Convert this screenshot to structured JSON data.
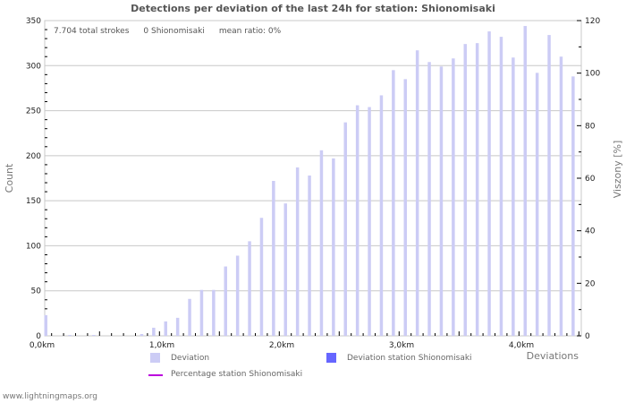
{
  "title": "Detections per deviation of the last 24h for station: Shionomisaki",
  "stats": {
    "total_strokes": "7.704 total strokes",
    "station_count": "0 Shionomisaki",
    "mean_ratio": "mean ratio: 0%"
  },
  "axes": {
    "y_left_title": "Count",
    "y_right_title": "Viszony [%]",
    "x_title": "Deviations",
    "y_left_ticks": [
      "0",
      "50",
      "100",
      "150",
      "200",
      "250",
      "300",
      "350"
    ],
    "y_right_ticks": [
      "0",
      "20",
      "40",
      "60",
      "80",
      "100",
      "120"
    ],
    "x_ticks": [
      "0,0km",
      "1,0km",
      "2,0km",
      "3,0km",
      "4,0km"
    ]
  },
  "legend": {
    "deviation": "Deviation",
    "deviation_station": "Deviation station Shionomisaki",
    "percentage_station": "Percentage station Shionomisaki"
  },
  "colors": {
    "deviation": "#ccccf5",
    "deviation_station": "#6666ff",
    "percentage_line": "#bb00dd",
    "grid": "#c8c8c8"
  },
  "watermark": "www.lightningmaps.org",
  "chart_data": {
    "type": "bar",
    "title": "Detections per deviation of the last 24h for station: Shionomisaki",
    "xlabel": "Deviations",
    "ylabel": "Count",
    "ylabel_right": "Viszony [%]",
    "ylim": [
      0,
      350
    ],
    "ylim_right": [
      0,
      120
    ],
    "grid": true,
    "legend_position": "bottom",
    "categories": [
      "0.0",
      "0.1",
      "0.2",
      "0.3",
      "0.4",
      "0.5",
      "0.6",
      "0.7",
      "0.8",
      "0.9",
      "1.0",
      "1.1",
      "1.2",
      "1.3",
      "1.4",
      "1.5",
      "1.6",
      "1.7",
      "1.8",
      "1.9",
      "2.0",
      "2.1",
      "2.2",
      "2.3",
      "2.4",
      "2.5",
      "2.6",
      "2.7",
      "2.8",
      "2.9",
      "3.0",
      "3.1",
      "3.2",
      "3.3",
      "3.4",
      "3.5",
      "3.6",
      "3.7",
      "3.8",
      "3.9",
      "4.0",
      "4.1",
      "4.2",
      "4.3",
      "4.4"
    ],
    "series": [
      {
        "name": "Deviation",
        "values": [
          23,
          0,
          1,
          0,
          1,
          0,
          0,
          0,
          2,
          9,
          16,
          20,
          41,
          51,
          51,
          77,
          89,
          105,
          131,
          172,
          147,
          187,
          178,
          206,
          197,
          237,
          256,
          254,
          267,
          295,
          285,
          317,
          304,
          299,
          308,
          324,
          325,
          338,
          332,
          309,
          344,
          292,
          334,
          310,
          288
        ]
      },
      {
        "name": "Deviation station Shionomisaki",
        "values": [
          0,
          0,
          0,
          0,
          0,
          0,
          0,
          0,
          0,
          0,
          0,
          0,
          0,
          0,
          0,
          0,
          0,
          0,
          0,
          0,
          0,
          0,
          0,
          0,
          0,
          0,
          0,
          0,
          0,
          0,
          0,
          0,
          0,
          0,
          0,
          0,
          0,
          0,
          0,
          0,
          0,
          0,
          0,
          0,
          0
        ]
      },
      {
        "name": "Percentage station Shionomisaki",
        "values": [
          0,
          0,
          0,
          0,
          0,
          0,
          0,
          0,
          0,
          0,
          0,
          0,
          0,
          0,
          0,
          0,
          0,
          0,
          0,
          0,
          0,
          0,
          0,
          0,
          0,
          0,
          0,
          0,
          0,
          0,
          0,
          0,
          0,
          0,
          0,
          0,
          0,
          0,
          0,
          0,
          0,
          0,
          0,
          0,
          0
        ]
      }
    ]
  }
}
